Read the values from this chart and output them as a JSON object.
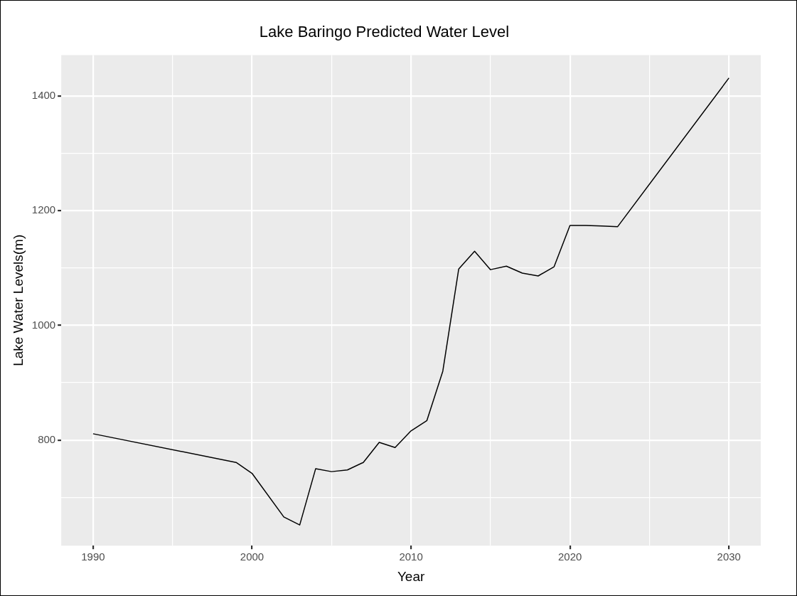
{
  "chart_data": {
    "type": "line",
    "title": "Lake Baringo Predicted Water Level",
    "xlabel": "Year",
    "ylabel": "Lake Water Levels(m)",
    "x": [
      1990,
      1999,
      2000,
      2002,
      2003,
      2004,
      2005,
      2006,
      2007,
      2008,
      2009,
      2010,
      2011,
      2012,
      2013,
      2014,
      2015,
      2016,
      2017,
      2018,
      2019,
      2020,
      2021,
      2022,
      2023,
      2030
    ],
    "series": [
      {
        "color": "#000000",
        "values": [
          811,
          761,
          742,
          666,
          652,
          750,
          745,
          748,
          761,
          796,
          787,
          816,
          834,
          920,
          1098,
          1129,
          1097,
          1103,
          1091,
          1086,
          1102,
          1174,
          1174,
          1173,
          1172,
          1431
        ]
      }
    ],
    "xlim": [
      1988,
      2032
    ],
    "xticks": [
      1990,
      {
        "value": 1995,
        "label": null
      },
      2000,
      {
        "value": 2005,
        "label": null
      },
      2010,
      {
        "value": 2015,
        "label": null
      },
      2020,
      {
        "value": 2025,
        "label": null
      },
      2030
    ],
    "ylim": [
      616,
      1471
    ],
    "yticks": [
      {
        "value": 700,
        "label": null
      },
      800,
      {
        "value": 900,
        "label": null
      },
      1000,
      {
        "value": 1100,
        "label": null
      },
      1200,
      {
        "value": 1300,
        "label": null
      },
      1400
    ],
    "grid": true,
    "legend": false,
    "marker": "none",
    "line_style": "solid"
  }
}
